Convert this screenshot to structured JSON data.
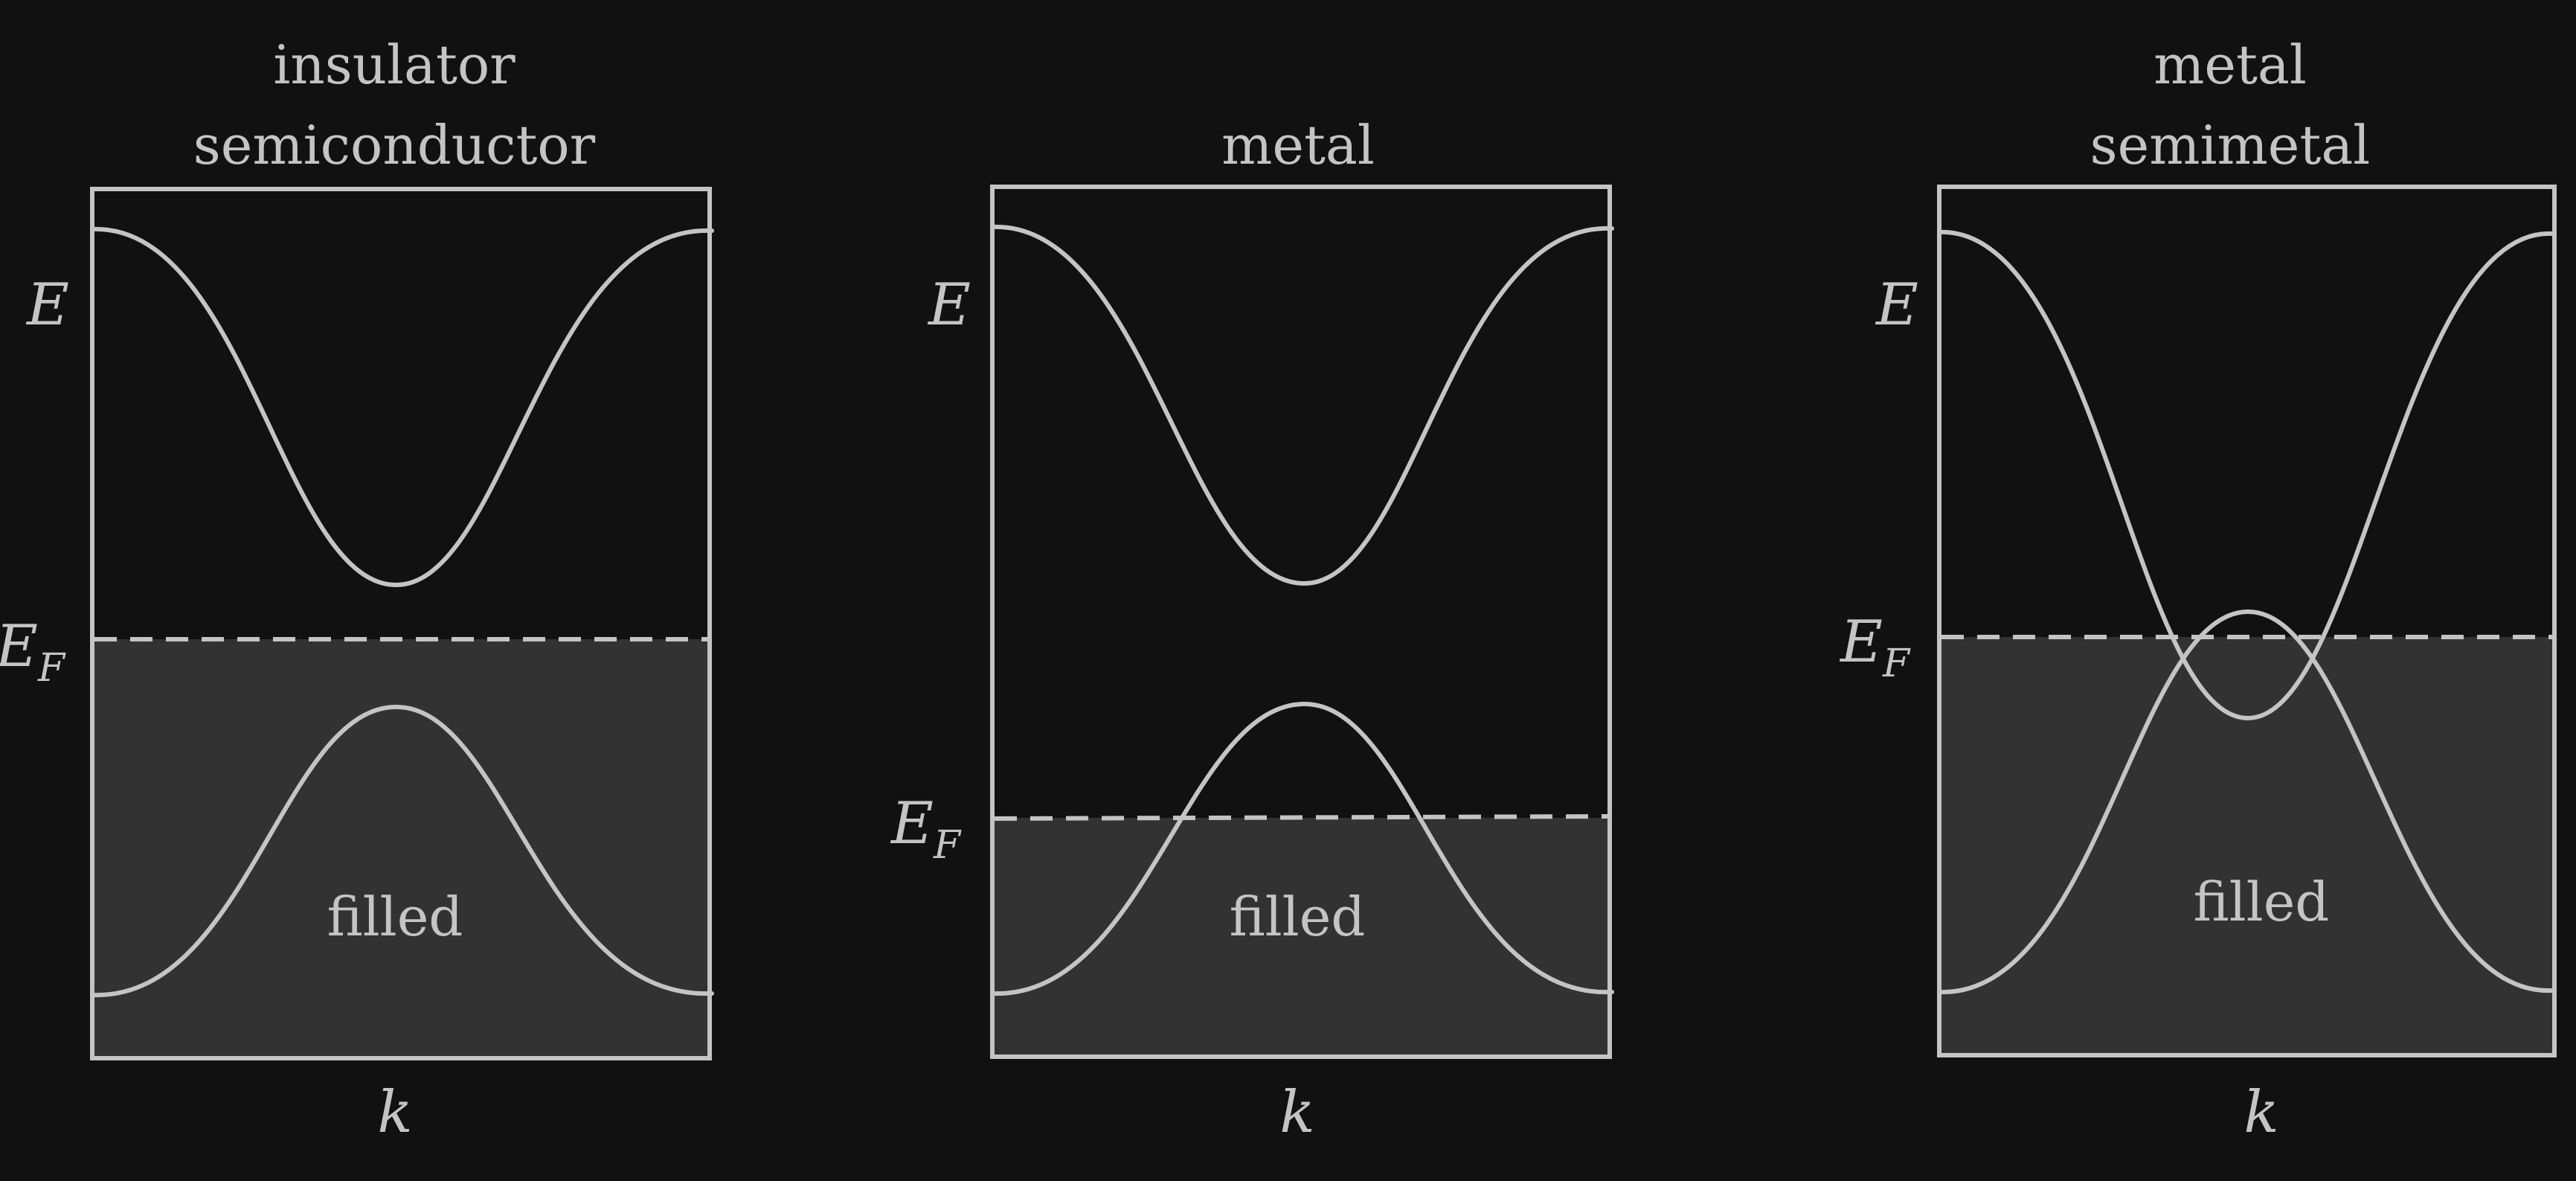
{
  "panels": [
    {
      "title_lines": [
        "insulator",
        "semiconductor"
      ],
      "y_label": "E",
      "fermi_label": "E",
      "fermi_subscript": "F",
      "x_label": "k",
      "region_label": "filled"
    },
    {
      "title_lines": [
        "metal"
      ],
      "y_label": "E",
      "fermi_label": "E",
      "fermi_subscript": "F",
      "x_label": "k",
      "region_label": "filled"
    },
    {
      "title_lines": [
        "metal",
        "semimetal"
      ],
      "y_label": "E",
      "fermi_label": "E",
      "fermi_subscript": "F",
      "x_label": "k",
      "region_label": "filled"
    }
  ],
  "colors": {
    "background": "#111111",
    "line": "#c4c4c4",
    "filled": "#323232"
  }
}
